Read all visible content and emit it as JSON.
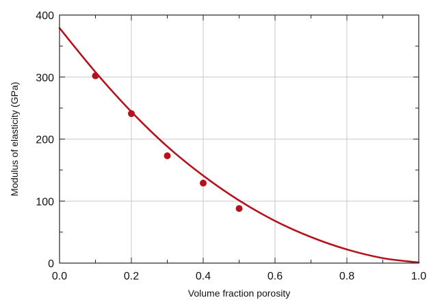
{
  "chart_data": {
    "type": "scatter",
    "title": "",
    "xlabel": "Volume fraction porosity",
    "ylabel": "Modulus of elasticity (GPa)",
    "xlim": [
      0.0,
      1.0
    ],
    "ylim": [
      0,
      400
    ],
    "x_ticks": [
      0.0,
      0.2,
      0.4,
      0.6,
      0.8,
      1.0
    ],
    "x_tick_labels": [
      "0.0",
      "0.2",
      "0.4",
      "0.6",
      "0.8",
      "1.0"
    ],
    "y_ticks": [
      0,
      100,
      200,
      300,
      400
    ],
    "y_tick_labels": [
      "0",
      "100",
      "200",
      "300",
      "400"
    ],
    "grid": true,
    "series": [
      {
        "kind": "points",
        "x": [
          0.1,
          0.2,
          0.3,
          0.4,
          0.5
        ],
        "y": [
          302,
          241,
          173,
          129,
          88
        ],
        "color": "#b5121b"
      },
      {
        "kind": "curve",
        "x": [
          0.0,
          0.1,
          0.2,
          0.3,
          0.4,
          0.5,
          0.6,
          0.7,
          0.8,
          0.9,
          1.0
        ],
        "y": [
          379,
          308,
          244,
          188,
          141,
          101,
          68,
          42,
          22,
          8,
          1
        ],
        "color": "#b5121b"
      }
    ]
  }
}
